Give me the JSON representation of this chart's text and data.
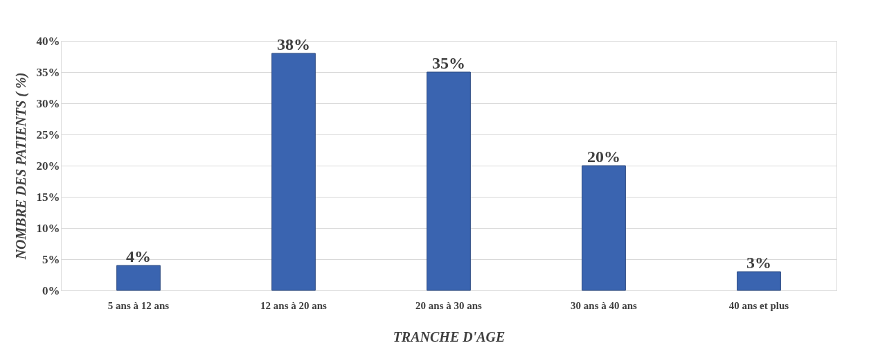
{
  "chart_data": {
    "type": "bar",
    "xlabel": "TRANCHE D'AGE",
    "ylabel": "NOMBRE DES PATIENTS ( %)",
    "categories": [
      "5 ans à 12 ans",
      "12 ans à 20 ans",
      "20 ans à 30 ans",
      "30 ans à 40 ans",
      "40 ans et plus"
    ],
    "values": [
      4,
      38,
      35,
      20,
      3
    ],
    "value_labels": [
      "4%",
      "38%",
      "35%",
      "20%",
      "3%"
    ],
    "color": "#3a64b0",
    "ylim": [
      0,
      40
    ],
    "yticks": [
      {
        "value": 0,
        "label": "0%"
      },
      {
        "value": 5,
        "label": "5%"
      },
      {
        "value": 10,
        "label": "10%"
      },
      {
        "value": 15,
        "label": "15%"
      },
      {
        "value": 20,
        "label": "20%"
      },
      {
        "value": 25,
        "label": "25%"
      },
      {
        "value": 30,
        "label": "30%"
      },
      {
        "value": 35,
        "label": "35%"
      },
      {
        "value": 40,
        "label": "40%"
      }
    ],
    "grid": "y"
  }
}
